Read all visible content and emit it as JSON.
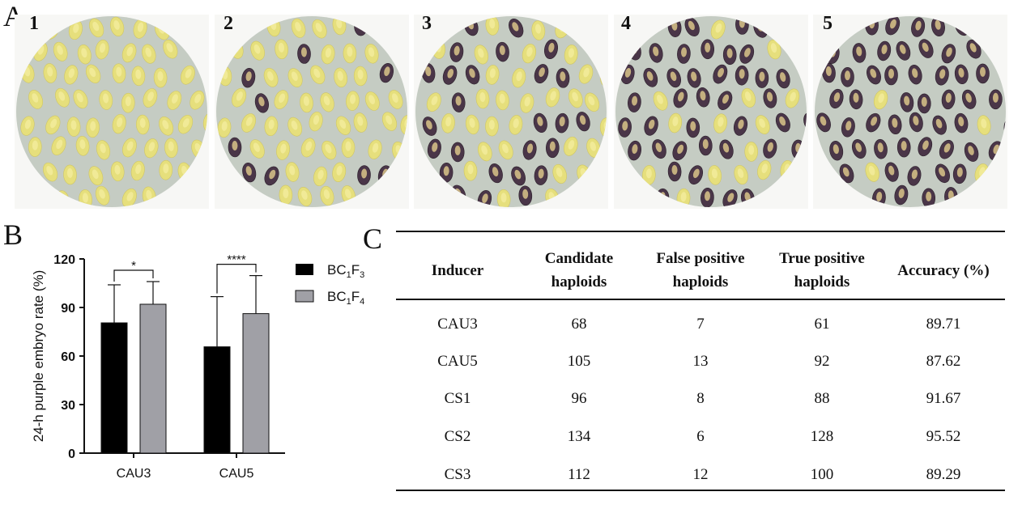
{
  "panel_a": {
    "letter": "A",
    "dishes": [
      {
        "label": "1",
        "purple": 0,
        "yellow": 1
      },
      {
        "label": "2",
        "purple": 12,
        "yellow": 1
      },
      {
        "label": "3",
        "purple": 24,
        "yellow": 1
      },
      {
        "label": "4",
        "purple": 44,
        "yellow": 1
      },
      {
        "label": "5",
        "purple": 56,
        "yellow": 1
      }
    ]
  },
  "panel_b": {
    "letter": "B"
  },
  "panel_c": {
    "letter": "C"
  },
  "colors": {
    "bc1f3": "#000000",
    "bc1f4": "#a0a0a6",
    "dish_bg": "#c5ccc3",
    "kernel_yellow": "#e6df7c",
    "kernel_purple": "#3a2b3c"
  },
  "chart_data": {
    "type": "bar",
    "categories": [
      "CAU3",
      "CAU5"
    ],
    "ylabel": "24-h purple embryo rate (%)",
    "xlabel": "",
    "ylim": [
      0,
      120
    ],
    "yticks": [
      0,
      30,
      60,
      90,
      120
    ],
    "grid": false,
    "legend_position": "right",
    "series": [
      {
        "name": "BC1F3",
        "legend_base": "BC",
        "legend_sub1": "1",
        "legend_mid": "F",
        "legend_sub2": "3",
        "values": [
          80.5,
          65.7
        ],
        "error": [
          23.5,
          31.0
        ]
      },
      {
        "name": "BC1F4",
        "legend_base": "BC",
        "legend_sub1": "1",
        "legend_mid": "F",
        "legend_sub2": "4",
        "values": [
          92.0,
          86.2
        ],
        "error": [
          14.0,
          23.5
        ]
      }
    ],
    "significance": [
      "*",
      "****"
    ]
  },
  "table": {
    "headers": [
      {
        "line1": "Inducer",
        "line2": ""
      },
      {
        "line1": "Candidate",
        "line2": "haploids"
      },
      {
        "line1": "False positive",
        "line2": "haploids"
      },
      {
        "line1": "True positive",
        "line2": "haploids"
      },
      {
        "line1": "Accuracy (%)",
        "line2": ""
      }
    ],
    "rows": [
      [
        "CAU3",
        "68",
        "7",
        "61",
        "89.71"
      ],
      [
        "CAU5",
        "105",
        "13",
        "92",
        "87.62"
      ],
      [
        "CS1",
        "96",
        "8",
        "88",
        "91.67"
      ],
      [
        "CS2",
        "134",
        "6",
        "128",
        "95.52"
      ],
      [
        "CS3",
        "112",
        "12",
        "100",
        "89.29"
      ]
    ]
  }
}
